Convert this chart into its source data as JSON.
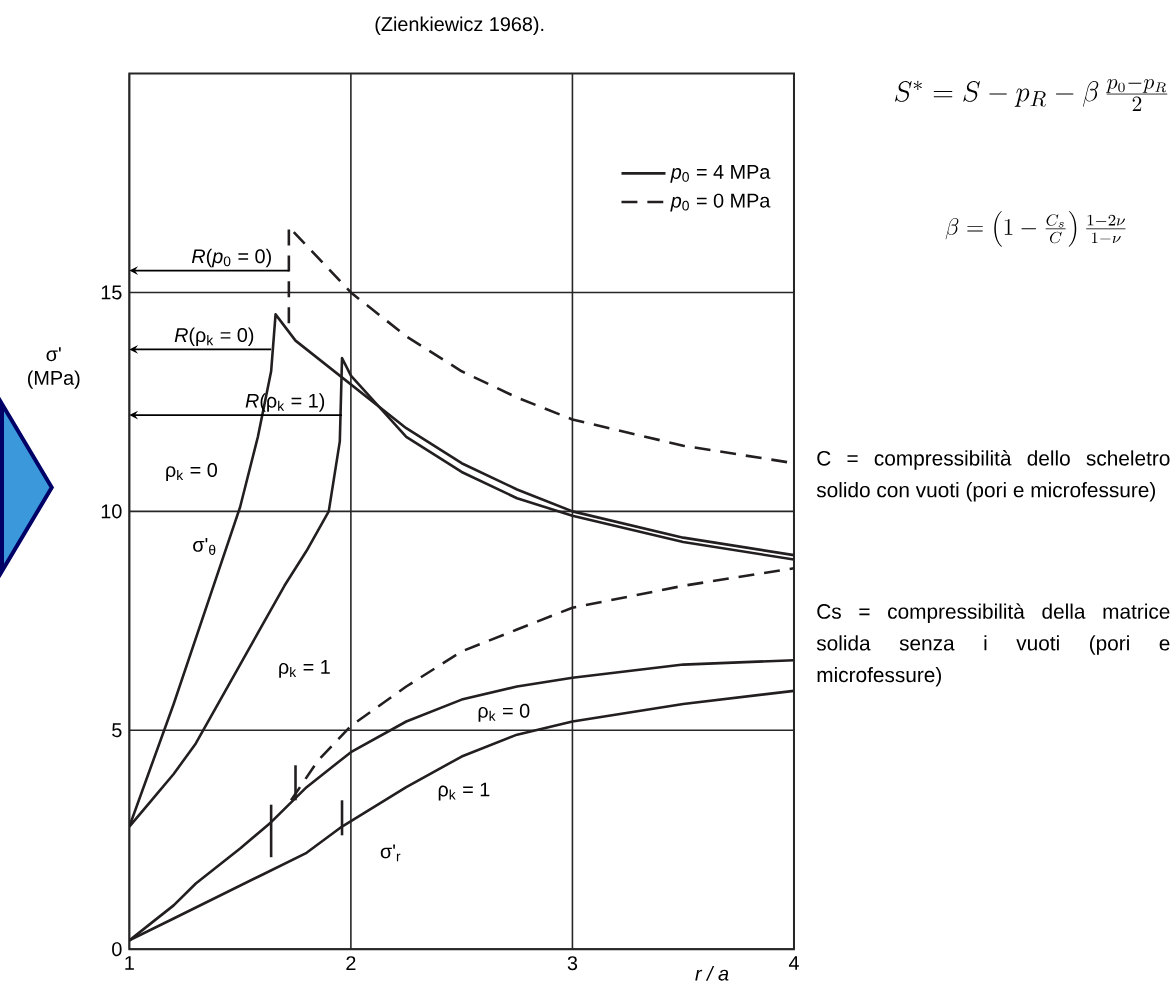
{
  "chart_data": {
    "type": "line",
    "title": "(Zienkiewicz 1968).",
    "xlabel": "r / a",
    "ylabel": "σ' (MPa)",
    "xlim": [
      1,
      4
    ],
    "ylim": [
      0,
      20
    ],
    "xticks": [
      1,
      2,
      3,
      4
    ],
    "yticks": [
      0,
      5,
      10,
      15
    ],
    "grid": true,
    "legend": "top right",
    "series": [
      {
        "name": "*p*$_{0}$ = 4 MPa",
        "color": "#231f20",
        "line_style": "solid",
        "x": [
          1,
          1.1,
          1.2,
          1.3,
          1.4,
          1.5,
          1.58,
          1.64,
          1.66,
          1.75,
          2,
          2.25,
          2.5,
          2.75,
          3,
          3.5,
          4
        ],
        "values": [
          2.8,
          4.2,
          5.6,
          7.1,
          8.6,
          10.1,
          11.7,
          13.2,
          14.5,
          13.9,
          12.9,
          11.9,
          11.1,
          10.5,
          10.0,
          9.4,
          9.0
        ]
      },
      {
        "color": "#231f20",
        "line_style": "solid",
        "x": [
          1,
          1.1,
          1.2,
          1.3,
          1.4,
          1.5,
          1.6,
          1.7,
          1.8,
          1.9,
          1.95,
          1.96,
          2,
          2.25,
          2.5,
          2.75,
          3,
          3.5,
          4
        ],
        "values": [
          2.8,
          3.4,
          4.0,
          4.7,
          5.6,
          6.5,
          7.4,
          8.3,
          9.1,
          10.0,
          11.6,
          13.5,
          13.1,
          11.7,
          10.9,
          10.3,
          9.9,
          9.3,
          8.9
        ]
      },
      {
        "color": "#231f20",
        "line_style": "solid",
        "x": [
          1,
          1.1,
          1.2,
          1.3,
          1.4,
          1.5,
          1.64,
          1.8,
          2,
          2.25,
          2.5,
          2.75,
          3,
          3.5,
          4
        ],
        "values": [
          0.2,
          0.6,
          1.0,
          1.5,
          1.9,
          2.3,
          2.9,
          3.7,
          4.5,
          5.2,
          5.7,
          6.0,
          6.2,
          6.5,
          6.6
        ]
      },
      {
        "color": "#231f20",
        "line_style": "solid",
        "x": [
          1,
          1.2,
          1.4,
          1.6,
          1.8,
          1.96,
          2.25,
          2.5,
          2.75,
          3,
          3.5,
          4
        ],
        "values": [
          0.2,
          0.7,
          1.2,
          1.7,
          2.2,
          2.8,
          3.7,
          4.4,
          4.9,
          5.2,
          5.6,
          5.9
        ]
      },
      {
        "name": "*p*$_{0}$ = 0 MPa",
        "color": "#231f20",
        "line_style": "dashed",
        "x": [
          1.72,
          1.72,
          2,
          2.25,
          2.5,
          2.75,
          3,
          3.5,
          4
        ],
        "values": [
          14.3,
          16.5,
          15.0,
          14.0,
          13.2,
          12.6,
          12.1,
          11.5,
          11.1
        ]
      },
      {
        "color": "#231f20",
        "line_style": "dashed",
        "x": [
          1.73,
          1.85,
          2,
          2.25,
          2.5,
          2.75,
          3,
          3.5,
          4
        ],
        "values": [
          3.4,
          4.3,
          5.1,
          6.0,
          6.8,
          7.3,
          7.8,
          8.3,
          8.7
        ]
      },
      {
        "color": "#231f20",
        "line_style": "solid",
        "x": [
          1.64,
          1.64
        ],
        "values": [
          2.1,
          3.3
        ]
      },
      {
        "color": "#231f20",
        "line_style": "solid",
        "x": [
          1.75,
          1.75
        ],
        "values": [
          3.4,
          4.2
        ]
      },
      {
        "color": "#231f20",
        "line_style": "solid",
        "x": [
          1.96,
          1.96
        ],
        "values": [
          2.6,
          3.4
        ]
      }
    ],
    "annotations": [
      {
        "text": "*R*(*p*$_{0}$ = 0)",
        "x": 1.72,
        "y": 15.5
      },
      {
        "text": "*R*(ρ$_{k}$ = 0)",
        "x": 1.64,
        "y": 13.7
      },
      {
        "text": "*R*(ρ$_{k}$ = 1)",
        "x": 1.96,
        "y": 12.2
      },
      "ρ$_{k}$ = 0",
      "σ'$_{θ}$",
      "ρ$_{k}$ = 1",
      "ρ$_{k}$ = 0",
      "ρ$_{k}$ = 1",
      "σ'$_{r}$",
      "S^{*}=S-p_{R}-\\beta\\,\\frac{p_{0}-p_{R}}{2}",
      "\\beta=\\left(1-\\frac{C_{s}}{C}\\right)\\frac{1-2\\nu}{1-\\nu}",
      "C = compressibilità dello scheletro solido con vuoti (pori e microfessure)",
      "Cs = compressibilità della matrice solida senza i vuoti (pori e microfessure)"
    ]
  }
}
